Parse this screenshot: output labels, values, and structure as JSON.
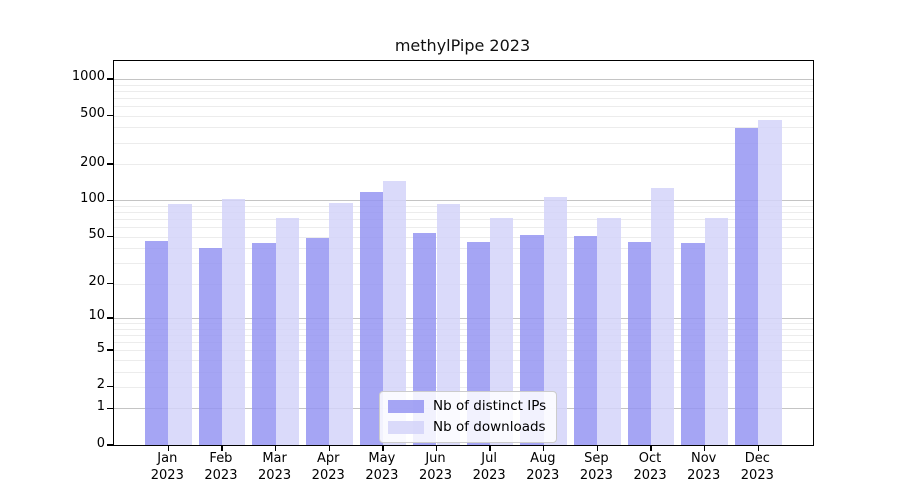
{
  "title": "methylPipe 2023",
  "chart_data": {
    "type": "bar",
    "title": "methylPipe 2023",
    "xlabel": "",
    "ylabel": "",
    "categories": [
      "Jan",
      "Feb",
      "Mar",
      "Apr",
      "May",
      "Jun",
      "Jul",
      "Aug",
      "Sep",
      "Oct",
      "Nov",
      "Dec"
    ],
    "year": "2023",
    "series": [
      {
        "name": "Nb of distinct IPs",
        "color": "#9595f2",
        "values": [
          46,
          40,
          44,
          49,
          118,
          54,
          45,
          52,
          51,
          45,
          44,
          397
        ]
      },
      {
        "name": "Nb of downloads",
        "color": "#d3d3f9",
        "values": [
          94,
          103,
          72,
          96,
          145,
          93,
          71,
          107,
          71,
          126,
          72,
          460
        ]
      }
    ],
    "y_ticks": [
      0,
      1,
      2,
      5,
      10,
      20,
      50,
      100,
      200,
      500,
      1000
    ],
    "y_scale": "log10(value+1)",
    "ylim": [
      0,
      1400
    ],
    "grid": "major and minor horizontal gridlines",
    "legend_position": "lower center"
  }
}
